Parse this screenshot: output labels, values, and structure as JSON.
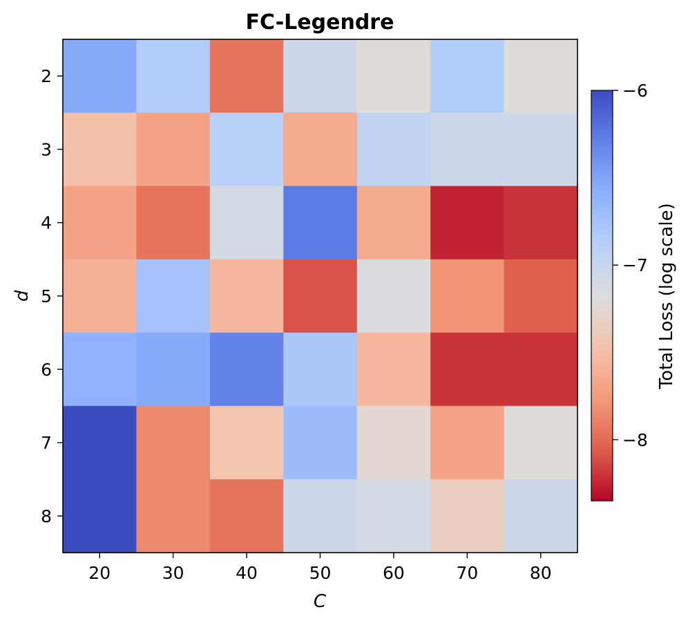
{
  "chart_data": {
    "type": "heatmap",
    "title": "FC-Legendre",
    "xlabel": "C",
    "ylabel": "d",
    "x": [
      "20",
      "30",
      "40",
      "50",
      "60",
      "70",
      "80"
    ],
    "y": [
      "2",
      "3",
      "4",
      "5",
      "6",
      "7",
      "8"
    ],
    "z": [
      [
        -6.55,
        -6.85,
        -7.95,
        -7.05,
        -7.2,
        -6.85,
        -7.2
      ],
      [
        -7.5,
        -7.7,
        -6.9,
        -7.65,
        -6.95,
        -7.05,
        -7.05
      ],
      [
        -7.7,
        -7.95,
        -7.1,
        -6.25,
        -7.65,
        -8.25,
        -8.2
      ],
      [
        -7.6,
        -6.75,
        -7.55,
        -8.1,
        -7.15,
        -7.8,
        -8.05
      ],
      [
        -6.6,
        -6.55,
        -6.3,
        -6.8,
        -7.55,
        -8.2,
        -8.2
      ],
      [
        -6.0,
        -7.85,
        -7.45,
        -6.7,
        -7.25,
        -7.7,
        -7.2
      ],
      [
        -6.0,
        -7.85,
        -7.95,
        -7.05,
        -7.1,
        -7.35,
        -7.05
      ]
    ],
    "colorbar": {
      "label": "Total Loss (log scale)",
      "range": [
        -8.35,
        -6.0
      ],
      "ticks": [
        "−6",
        "−7",
        "−8"
      ],
      "tick_values": [
        -6,
        -7,
        -8
      ],
      "colormap": "coolwarm (reversed)"
    }
  }
}
